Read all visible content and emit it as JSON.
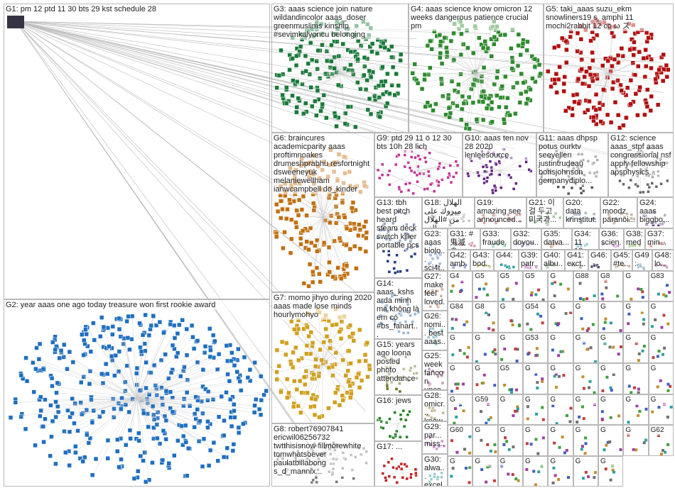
{
  "groups": [
    {
      "label": "G1: pm 12 ptd 11 30 bts 29 kst schedule 28"
    },
    {
      "label": "G2: year aaas one ago today treasure won first rookie award"
    },
    {
      "label": "G3: aaas science join nature wildandincolor aaas_doser greenmuslims kinship #sevimkalyoncu belonging"
    },
    {
      "label": "G4: aaas science know omicron 12 weeks dangerous patience crucial pm"
    },
    {
      "label": "G5: taki_aaas suzu_ekm snowliners19 s_amphi 11 mochi2rabbit 12 co ω ス"
    },
    {
      "label": "G6: braincures academicparity aaas proftimnoakes drumeshprabhu resfortnight dsweeneyuk melaniewellham ianwcampbell do_kinder"
    },
    {
      "label": "G7: momo jihyo during 2020 aaas made lose minds hourlymohyo"
    },
    {
      "label": "G8: robert76907841 ericwil06256732 twtthisisnow fillmorewhite tomwhatsoever paulatbillabong s_d_mannix..."
    },
    {
      "label": "G9: ptd 29 11 ö 12 30 bts 10h 28 lich"
    },
    {
      "label": "G10: aaas ten nov 28 2020 lenleesource"
    },
    {
      "label": "G11: aaas dhpsp potus ourktv seeyellen justintrudeau borisjohnson germanydiplo..."
    },
    {
      "label": "G12: science aaas_stpf aaas congressional nsf apply fellowship apsphysics..."
    },
    {
      "label": "G13: tbh best pitch heard steam deck switch killer portable pcs"
    },
    {
      "label": "G18: الهلال ميروك على من #الهلال الف"
    },
    {
      "label": "G19: amazing see announced..."
    },
    {
      "label": "G21: 이 걸 두고 미국과..."
    },
    {
      "label": "G20: data krinstitut..."
    },
    {
      "label": "G22: moodz paranoi..."
    },
    {
      "label": "G24: aaas biggbo..."
    },
    {
      "label": "G23: aaas biolo... sci4t..."
    },
    {
      "label": "G31: # 鬼滅の..."
    },
    {
      "label": "G33: fraude..."
    },
    {
      "label": "G32: doyou..."
    },
    {
      "label": "G35: datva..."
    },
    {
      "label": "G34: 11 12..."
    },
    {
      "label": "G36: scien..."
    },
    {
      "label": "G38: med..."
    },
    {
      "label": "G37: min..."
    },
    {
      "label": "G42: amb..."
    },
    {
      "label": "G43: bod..."
    },
    {
      "label": "G44:"
    },
    {
      "label": "G39: patr..."
    },
    {
      "label": "G40: albu..."
    },
    {
      "label": "G41: exct..."
    },
    {
      "label": "G46:"
    },
    {
      "label": "G45: #te..."
    },
    {
      "label": "G49: ent..."
    },
    {
      "label": "G48: lo..."
    },
    {
      "label": "G14: aaas_kshs arda minh mà không là em có #bs_fanart..."
    },
    {
      "label": "G27: make feel loved..."
    },
    {
      "label": "G26: nomi... best aaas..."
    },
    {
      "label": "G15: years ago loona posted photo attendance"
    },
    {
      "label": "G25: week fancon upco..."
    },
    {
      "label": "G16: jews"
    },
    {
      "label": "G28: omicr... know..."
    },
    {
      "label": "G17: ..."
    },
    {
      "label": "G29: par... miss..."
    },
    {
      "label": "G30: alwa... excel..."
    }
  ],
  "small_groups": [
    "G4",
    "G5",
    "G5",
    "G5",
    "G",
    "G88",
    "G8",
    "G",
    "G83",
    "G84",
    "G8",
    "G",
    "G54",
    "G",
    "G",
    "G",
    "G",
    "G",
    "G",
    "G",
    "G",
    "G53",
    "G",
    "G",
    "G",
    "G",
    "G",
    "G",
    "G",
    "G5",
    "G",
    "G",
    "G",
    "G",
    "G",
    "G",
    "G",
    "G59",
    "G",
    "G",
    "G",
    "G",
    "G",
    "G",
    "G",
    "G60",
    "G",
    "G",
    "G",
    "G",
    "G",
    "G",
    "G",
    "G62",
    "G",
    "G",
    "G",
    "G",
    "G",
    "G",
    "G"
  ]
}
